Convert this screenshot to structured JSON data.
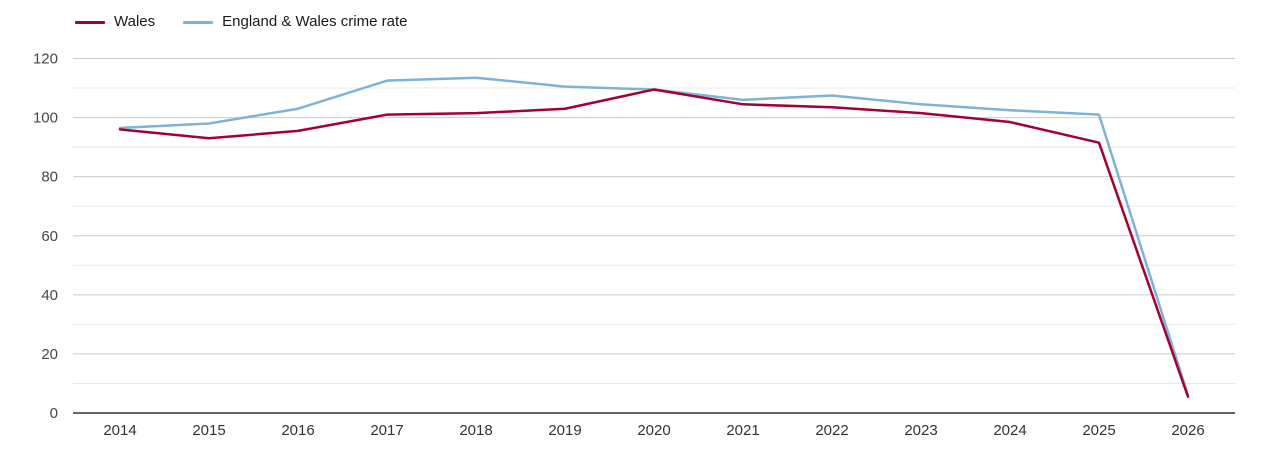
{
  "chart_data": {
    "type": "line",
    "title": "",
    "xlabel": "",
    "ylabel": "",
    "categories": [
      "2014",
      "2015",
      "2016",
      "2017",
      "2018",
      "2019",
      "2020",
      "2021",
      "2022",
      "2023",
      "2024",
      "2025",
      "2026"
    ],
    "series": [
      {
        "name": "Wales",
        "color": "#a50034",
        "values": [
          96,
          93,
          95.5,
          101,
          101.5,
          103,
          109.5,
          104.5,
          103.5,
          101.5,
          98.5,
          91.5,
          5.5
        ]
      },
      {
        "name": "England & Wales crime rate",
        "color": "#7eb2d8",
        "values": [
          96.5,
          98,
          103,
          112.5,
          113.5,
          110.5,
          109.5,
          106,
          107.5,
          104.5,
          102.5,
          101,
          6
        ]
      }
    ],
    "ylim": [
      0,
      120
    ],
    "y_major_ticks": [
      0,
      20,
      40,
      60,
      80,
      100,
      120
    ],
    "y_minor_ticks": [
      10,
      30,
      50,
      70,
      90,
      110
    ],
    "grid": true,
    "legend_position": "top-left",
    "colors": {
      "major_gridline": "#cbcbcb",
      "minor_gridline": "#e8e8e8",
      "axis_line": "#333333",
      "y_tick_label": "#474747",
      "x_tick_label": "#333333",
      "background": "#ffffff"
    }
  }
}
